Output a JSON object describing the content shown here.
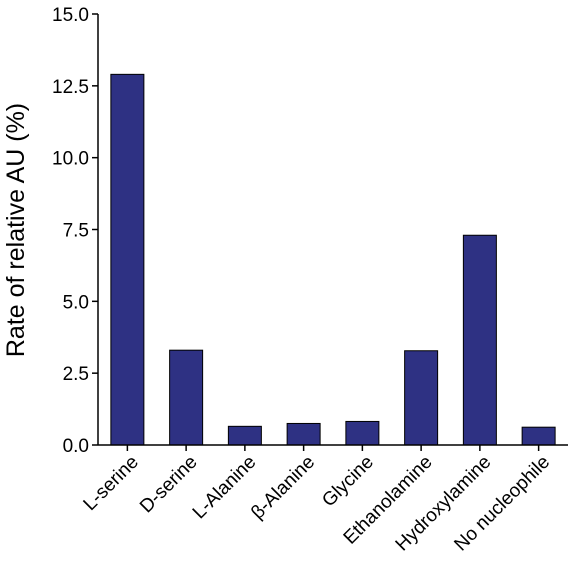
{
  "chart_data": {
    "type": "bar",
    "title": "",
    "xlabel": "",
    "ylabel": "Rate of relative AU (%)",
    "ylim": [
      0,
      15
    ],
    "yticks": [
      "0.0",
      "2.5",
      "5.0",
      "7.5",
      "10.0",
      "12.5",
      "15.0"
    ],
    "categories": [
      "L-serine",
      "D-serine",
      "L-Alanine",
      "β-Alanine",
      "Glycine",
      "Ethanolamine",
      "Hydroxylamine",
      "No nucleophile"
    ],
    "values": [
      12.9,
      3.3,
      0.65,
      0.75,
      0.82,
      3.28,
      7.3,
      0.62
    ],
    "grid": false,
    "bar_color": "#2e3183"
  }
}
